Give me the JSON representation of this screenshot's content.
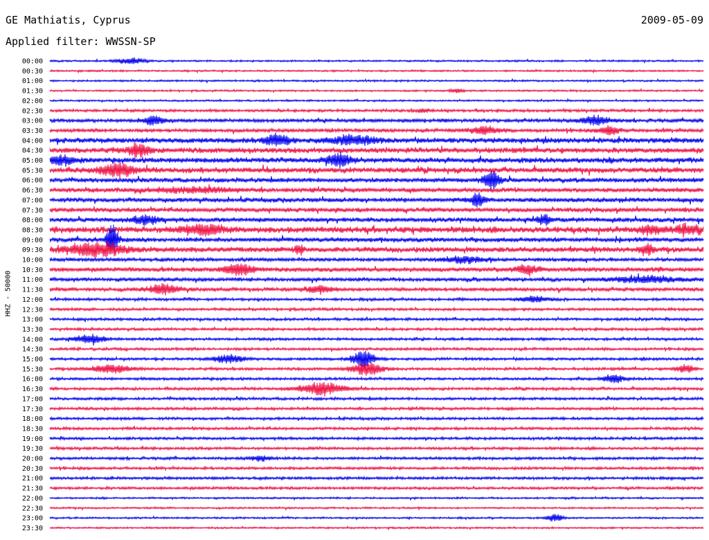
{
  "header": {
    "station": "GE Mathiatis, Cyprus",
    "date": "2009-05-09",
    "filter_prefix": "Applied filter: ",
    "filter": "WWSSN-SP"
  },
  "chart_data": {
    "type": "line",
    "channel_label": "HHZ - 50000",
    "row_labels": [
      "00:00",
      "00:30",
      "01:00",
      "01:30",
      "02:00",
      "02:30",
      "03:00",
      "03:30",
      "04:00",
      "04:30",
      "05:00",
      "05:30",
      "06:00",
      "06:30",
      "07:00",
      "07:30",
      "08:00",
      "08:30",
      "09:00",
      "09:30",
      "10:00",
      "10:30",
      "11:00",
      "11:30",
      "12:00",
      "12:30",
      "13:00",
      "13:30",
      "14:00",
      "14:30",
      "15:00",
      "15:30",
      "16:00",
      "16:30",
      "17:00",
      "17:30",
      "18:00",
      "18:30",
      "19:00",
      "19:30",
      "20:00",
      "20:30",
      "21:00",
      "21:30",
      "22:00",
      "22:30",
      "23:00",
      "23:30"
    ],
    "series_colors": [
      "#0000ee",
      "#ee1144"
    ],
    "noise_level": [
      1,
      1,
      1,
      1,
      1,
      1.5,
      2,
      2,
      3,
      3,
      3,
      3,
      2.5,
      2.5,
      2.5,
      2.5,
      2.5,
      3.5,
      2.5,
      3,
      2,
      2.5,
      2,
      2,
      1.5,
      1.5,
      1.5,
      1.5,
      1.5,
      1.5,
      1.5,
      1.5,
      1.5,
      1.5,
      1.5,
      1.5,
      1.5,
      1.5,
      1.5,
      1.5,
      1.5,
      1.5,
      1.5,
      1.5,
      1,
      1,
      1,
      1
    ]
  }
}
